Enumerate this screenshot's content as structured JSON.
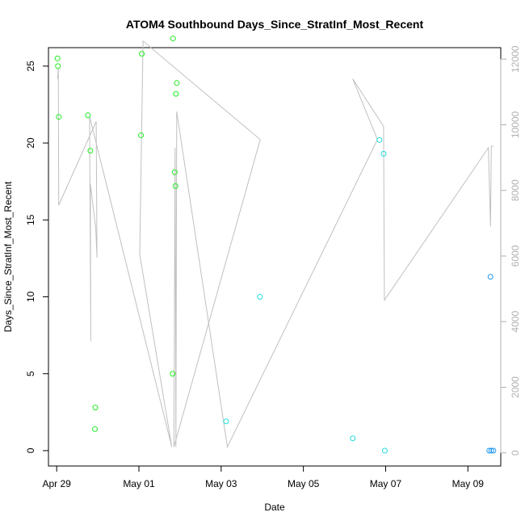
{
  "chart_data": {
    "type": "scatter",
    "title": "ATOM4 Southbound Days_Since_StratInf_Most_Recent",
    "xlabel": "Date",
    "ylabel": "Days_Since_StratInf_Most_Recent",
    "xlim": [
      -0.2,
      10.8
    ],
    "ylim": [
      -1,
      26.2
    ],
    "ylim_right": [
      -400,
      12350
    ],
    "x_ticks": [
      {
        "value": 0,
        "label": "Apr 29"
      },
      {
        "value": 2,
        "label": "May 01"
      },
      {
        "value": 4,
        "label": "May 03"
      },
      {
        "value": 6,
        "label": "May 05"
      },
      {
        "value": 8,
        "label": "May 07"
      },
      {
        "value": 10,
        "label": "May 09"
      }
    ],
    "y_ticks": [
      0,
      5,
      10,
      15,
      20,
      25
    ],
    "y_ticks_right": [
      0,
      2000,
      4000,
      6000,
      8000,
      10000,
      12000
    ],
    "grid": false,
    "legend": "none",
    "series": [
      {
        "marker": "circle",
        "points": [
          {
            "x": 0.02,
            "y": 25.5,
            "color": "#22ee22"
          },
          {
            "x": 0.03,
            "y": 25.0,
            "color": "#22ee22"
          },
          {
            "x": 0.05,
            "y": 21.7,
            "color": "#22ee22"
          },
          {
            "x": 0.76,
            "y": 21.8,
            "color": "#22ee22"
          },
          {
            "x": 0.82,
            "y": 19.5,
            "color": "#22ee22"
          },
          {
            "x": 0.94,
            "y": 2.8,
            "color": "#22ee22"
          },
          {
            "x": 0.93,
            "y": 1.4,
            "color": "#22ee22"
          },
          {
            "x": 2.07,
            "y": 25.8,
            "color": "#22ee22"
          },
          {
            "x": 2.05,
            "y": 20.5,
            "color": "#22ee22"
          },
          {
            "x": 2.83,
            "y": 26.8,
            "color": "#22ee22"
          },
          {
            "x": 2.92,
            "y": 23.9,
            "color": "#22ee22"
          },
          {
            "x": 2.9,
            "y": 23.2,
            "color": "#22ee22"
          },
          {
            "x": 2.87,
            "y": 18.1,
            "color": "#22ee22"
          },
          {
            "x": 2.89,
            "y": 17.2,
            "color": "#22ee22"
          },
          {
            "x": 2.82,
            "y": 5.0,
            "color": "#22ee22"
          },
          {
            "x": 4.12,
            "y": 1.9,
            "color": "#22dddd"
          },
          {
            "x": 4.94,
            "y": 10.0,
            "color": "#22dddd"
          },
          {
            "x": 7.2,
            "y": 0.8,
            "color": "#22dddd"
          },
          {
            "x": 7.85,
            "y": 20.2,
            "color": "#22dddd"
          },
          {
            "x": 7.95,
            "y": 19.3,
            "color": "#22dddd"
          },
          {
            "x": 7.98,
            "y": 0.0,
            "color": "#22dddd"
          },
          {
            "x": 10.55,
            "y": 11.3,
            "color": "#2299ee"
          },
          {
            "x": 10.52,
            "y": 0.0,
            "color": "#2299ee"
          },
          {
            "x": 10.57,
            "y": 0.0,
            "color": "#2299ee"
          },
          {
            "x": 10.62,
            "y": 0.0,
            "color": "#2299ee"
          }
        ]
      },
      {
        "type": "line",
        "axis": "right",
        "color": "#c0c0c0",
        "points": [
          {
            "x": 0.02,
            "y": 11400
          },
          {
            "x": 0.04,
            "y": 11700
          },
          {
            "x": 0.05,
            "y": 7550
          },
          {
            "x": 0.96,
            "y": 10100
          },
          {
            "x": 0.98,
            "y": 5950
          },
          {
            "x": 0.95,
            "y": 6850
          },
          {
            "x": 0.82,
            "y": 8200
          },
          {
            "x": 0.83,
            "y": 3400
          },
          {
            "x": 0.8,
            "y": 10250
          },
          {
            "x": 2.8,
            "y": 180
          },
          {
            "x": 2.02,
            "y": 6050
          },
          {
            "x": 2.1,
            "y": 12550
          },
          {
            "x": 4.95,
            "y": 9550
          },
          {
            "x": 2.85,
            "y": 180
          },
          {
            "x": 2.88,
            "y": 9300
          },
          {
            "x": 2.9,
            "y": 180
          },
          {
            "x": 2.92,
            "y": 10400
          },
          {
            "x": 4.15,
            "y": 180
          },
          {
            "x": 7.8,
            "y": 9550
          },
          {
            "x": 7.2,
            "y": 11400
          },
          {
            "x": 7.95,
            "y": 9950
          },
          {
            "x": 7.97,
            "y": 4650
          },
          {
            "x": 10.5,
            "y": 9300
          },
          {
            "x": 10.55,
            "y": 6900
          },
          {
            "x": 10.57,
            "y": 9350
          },
          {
            "x": 10.62,
            "y": 9350
          }
        ]
      }
    ]
  }
}
